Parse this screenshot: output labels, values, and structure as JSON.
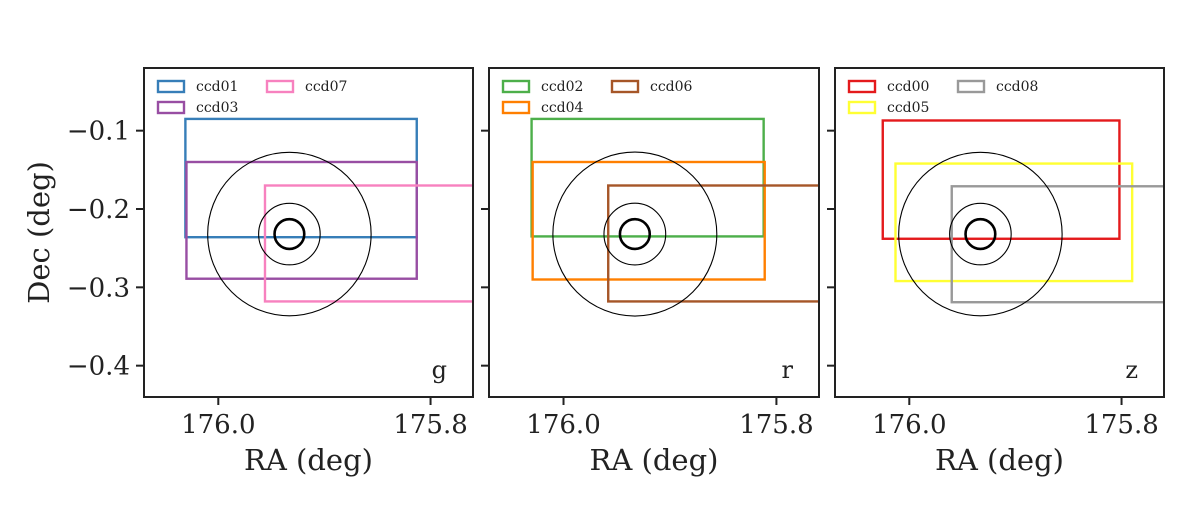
{
  "figure": {
    "xlabel": "RA (deg)",
    "ylabel": "Dec (deg)"
  },
  "chart_data": [
    {
      "type": "rectangle-footprint",
      "band": "g",
      "xlabel": "RA (deg)",
      "ylabel": "Dec (deg)",
      "xlim": [
        176.07,
        175.76
      ],
      "ylim": [
        -0.44,
        -0.02
      ],
      "x_ticks": [
        176.0,
        175.8
      ],
      "y_ticks": [
        -0.1,
        -0.2,
        -0.3,
        -0.4
      ],
      "x_tick_labels": [
        "176.0",
        "175.8"
      ],
      "y_tick_labels": [
        "−0.1",
        "−0.2",
        "−0.3",
        "−0.4"
      ],
      "legend_position": "upper-left",
      "legend_ncol": 2,
      "center": {
        "ra": 175.933,
        "dec": -0.232
      },
      "circles": [
        {
          "radius": 0.014,
          "width": 2.6
        },
        {
          "radius": 0.029,
          "width": 1.1
        },
        {
          "radius": 0.077,
          "width": 1.1
        }
      ],
      "rects": [
        {
          "name": "ccd01",
          "color": "#377eb8",
          "ra_min": 175.813,
          "ra_max": 176.031,
          "dec_min": -0.236,
          "dec_max": -0.085
        },
        {
          "name": "ccd03",
          "color": "#984ea3",
          "ra_min": 175.813,
          "ra_max": 176.03,
          "dec_min": -0.289,
          "dec_max": -0.14
        },
        {
          "name": "ccd07",
          "color": "#f781bf",
          "ra_min": 175.73,
          "ra_max": 175.956,
          "dec_min": -0.318,
          "dec_max": -0.17
        }
      ]
    },
    {
      "type": "rectangle-footprint",
      "band": "r",
      "xlabel": "RA (deg)",
      "ylabel": "",
      "xlim": [
        176.07,
        175.76
      ],
      "ylim": [
        -0.44,
        -0.02
      ],
      "x_ticks": [
        176.0,
        175.8
      ],
      "y_ticks": [
        -0.1,
        -0.2,
        -0.3,
        -0.4
      ],
      "x_tick_labels": [
        "176.0",
        "175.8"
      ],
      "y_tick_labels": [],
      "legend_position": "upper-left",
      "legend_ncol": 2,
      "center": {
        "ra": 175.933,
        "dec": -0.232
      },
      "circles": [
        {
          "radius": 0.014,
          "width": 2.6
        },
        {
          "radius": 0.029,
          "width": 1.1
        },
        {
          "radius": 0.077,
          "width": 1.1
        }
      ],
      "rects": [
        {
          "name": "ccd02",
          "color": "#4daf4a",
          "ra_min": 175.812,
          "ra_max": 176.03,
          "dec_min": -0.235,
          "dec_max": -0.085
        },
        {
          "name": "ccd04",
          "color": "#ff7f00",
          "ra_min": 175.811,
          "ra_max": 176.029,
          "dec_min": -0.29,
          "dec_max": -0.14
        },
        {
          "name": "ccd06",
          "color": "#a65628",
          "ra_min": 175.73,
          "ra_max": 175.958,
          "dec_min": -0.318,
          "dec_max": -0.17
        }
      ]
    },
    {
      "type": "rectangle-footprint",
      "band": "z",
      "xlabel": "RA (deg)",
      "ylabel": "",
      "xlim": [
        176.07,
        175.76
      ],
      "ylim": [
        -0.44,
        -0.02
      ],
      "x_ticks": [
        176.0,
        175.8
      ],
      "y_ticks": [
        -0.1,
        -0.2,
        -0.3,
        -0.4
      ],
      "x_tick_labels": [
        "176.0",
        "175.8"
      ],
      "y_tick_labels": [],
      "legend_position": "upper-left",
      "legend_ncol": 2,
      "center": {
        "ra": 175.933,
        "dec": -0.232
      },
      "circles": [
        {
          "radius": 0.014,
          "width": 2.6
        },
        {
          "radius": 0.029,
          "width": 1.1
        },
        {
          "radius": 0.077,
          "width": 1.1
        }
      ],
      "rects": [
        {
          "name": "ccd00",
          "color": "#e41a1c",
          "ra_min": 175.802,
          "ra_max": 176.025,
          "dec_min": -0.238,
          "dec_max": -0.087
        },
        {
          "name": "ccd05",
          "color": "#ffff33",
          "ra_min": 175.79,
          "ra_max": 176.013,
          "dec_min": -0.292,
          "dec_max": -0.142
        },
        {
          "name": "ccd08",
          "color": "#999999",
          "ra_min": 175.73,
          "ra_max": 175.96,
          "dec_min": -0.319,
          "dec_max": -0.171
        }
      ]
    }
  ]
}
